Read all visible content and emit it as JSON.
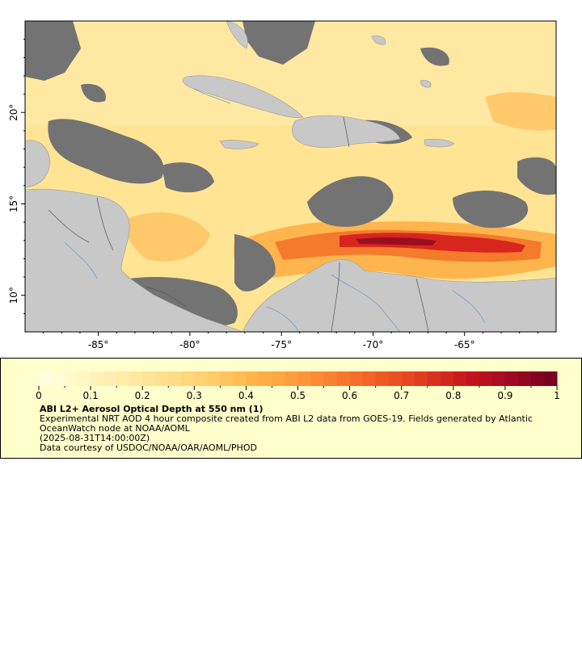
{
  "map": {
    "lon_ticks": [
      {
        "value": -85,
        "label": "-85°"
      },
      {
        "value": -80,
        "label": "-80°"
      },
      {
        "value": -75,
        "label": "-75°"
      },
      {
        "value": -70,
        "label": "-70°"
      },
      {
        "value": -65,
        "label": "-65°"
      }
    ],
    "lat_ticks": [
      {
        "value": 10,
        "label": "10°"
      },
      {
        "value": 15,
        "label": "15°"
      },
      {
        "value": 20,
        "label": "20°"
      }
    ],
    "lon_range": [
      -89,
      -60
    ],
    "lat_range": [
      8,
      25
    ],
    "colors": {
      "land": "#c8c8c8",
      "no_data": "#737373",
      "ocean_low": "#ffe699",
      "rivers": "#6fa0d6",
      "borders": "#555555"
    }
  },
  "legend": {
    "title": "ABI L2+ Aerosol Optical Depth at 550 nm (1)",
    "description": "Experimental NRT AOD 4 hour composite created from ABI L2 data from GOES-19. Fields generated by Atlantic OceanWatch node at NOAA/AOML",
    "timestamp": "(2025-08-31T14:00:00Z)",
    "credit": "Data courtesy of USDOC/NOAA/OAR/AOML/PHOD",
    "scale_min": 0,
    "scale_max": 1,
    "ticks": [
      {
        "value": 0,
        "label": "0"
      },
      {
        "value": 0.1,
        "label": "0.1"
      },
      {
        "value": 0.2,
        "label": "0.2"
      },
      {
        "value": 0.3,
        "label": "0.3"
      },
      {
        "value": 0.4,
        "label": "0.4"
      },
      {
        "value": 0.5,
        "label": "0.5"
      },
      {
        "value": 0.6,
        "label": "0.6"
      },
      {
        "value": 0.7,
        "label": "0.7"
      },
      {
        "value": 0.8,
        "label": "0.8"
      },
      {
        "value": 0.9,
        "label": "0.9"
      },
      {
        "value": 1,
        "label": "1"
      }
    ],
    "colors": [
      "#ffffe0",
      "#fff5c0",
      "#ffeaa3",
      "#ffdd88",
      "#ffcc66",
      "#ffb347",
      "#fd9a3a",
      "#f87a2e",
      "#ef5a24",
      "#e03a1e",
      "#c8151c",
      "#a20a22",
      "#7a0020"
    ]
  }
}
